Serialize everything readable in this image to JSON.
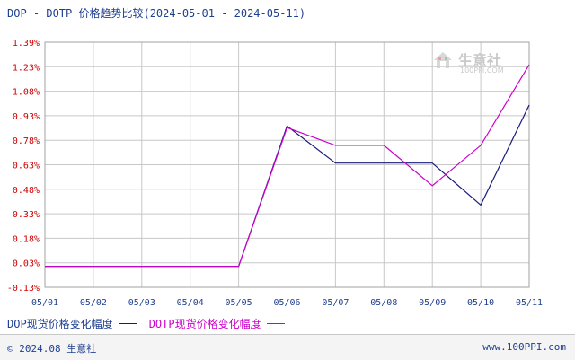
{
  "title": "DOP - DOTP 价格趋势比较(2024-05-01 - 2024-05-11)",
  "watermark": {
    "brand": "生意社",
    "url": "100PPI.COM"
  },
  "footer": {
    "copyright": "© 2024.08 生意社",
    "website": "www.100PPI.com"
  },
  "colors": {
    "series1": "#1a1a7a",
    "series2": "#cc00cc",
    "grid": "#c8c8c8",
    "ytick": "#cc0000",
    "xtick": "#1f3f8f"
  },
  "chart_data": {
    "type": "line",
    "x": [
      "05/01",
      "05/02",
      "05/03",
      "05/04",
      "05/05",
      "05/06",
      "05/07",
      "05/08",
      "05/09",
      "05/10",
      "05/11"
    ],
    "yticks": [
      "1.39%",
      "1.23%",
      "1.08%",
      "0.93%",
      "0.78%",
      "0.63%",
      "0.48%",
      "0.33%",
      "0.18%",
      "0.03%",
      "-0.13%"
    ],
    "ylim": [
      -0.13,
      1.39
    ],
    "grid": true,
    "legend_position": "bottom-left",
    "series": [
      {
        "name": "DOP现货价格变化幅度",
        "color": "#1a1a7a",
        "values": [
          0,
          0,
          0,
          0,
          0,
          0.87,
          0.64,
          0.64,
          0.64,
          0.38,
          1.0
        ]
      },
      {
        "name": "DOTP现货价格变化幅度",
        "color": "#cc00cc",
        "values": [
          0,
          0,
          0,
          0,
          0,
          0.86,
          0.75,
          0.75,
          0.5,
          0.75,
          1.25
        ]
      }
    ]
  }
}
